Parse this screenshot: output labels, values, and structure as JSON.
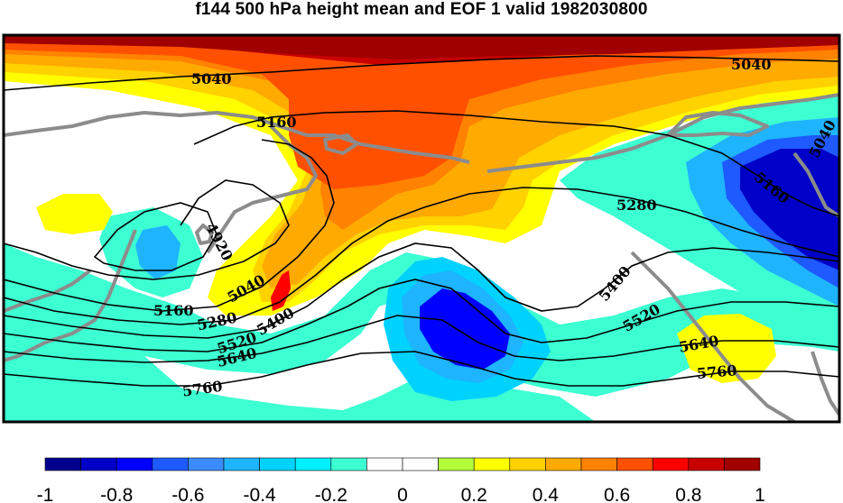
{
  "title": "f144 500 hPa height mean and EOF 1 valid 1982030800",
  "colors": {
    "frame": "#000000",
    "coastline": "#8c8c8c",
    "contour": "#000000",
    "scale": [
      "#00008c",
      "#0000c8",
      "#0000ff",
      "#1e5aff",
      "#3c8cff",
      "#1eb4ff",
      "#00d2ff",
      "#00f0ff",
      "#3cffd2",
      "#ffffff",
      "#ffffff",
      "#b4ff3c",
      "#ffff00",
      "#ffd200",
      "#ffaa00",
      "#ff8200",
      "#ff5000",
      "#ff0000",
      "#c80000",
      "#a00000"
    ]
  },
  "colorbar": {
    "tick_labels": [
      "-1",
      "-0.8",
      "-0.6",
      "-0.4",
      "-0.2",
      "0",
      "0.2",
      "0.4",
      "0.6",
      "0.8",
      "1"
    ]
  },
  "contour_labels": [
    "5040",
    "5040",
    "5160",
    "4920",
    "5040",
    "5160",
    "5280",
    "5400",
    "5520",
    "5640",
    "5760",
    "5280",
    "5160",
    "5040",
    "5400",
    "5520",
    "5640",
    "5760"
  ]
}
